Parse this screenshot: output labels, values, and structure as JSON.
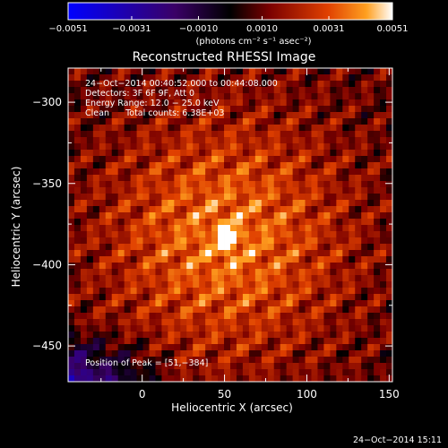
{
  "chart_data": {
    "type": "heatmap",
    "title": "Reconstructed RHESSI Image",
    "xlabel": "Heliocentric X (arcsec)",
    "ylabel": "Heliocentric Y (arcsec)",
    "xlim": [
      -45,
      152
    ],
    "ylim": [
      -472,
      -279
    ],
    "x_ticks": [
      0,
      50,
      100,
      150
    ],
    "y_ticks": [
      -300,
      -350,
      -400,
      -450
    ],
    "colorbar": {
      "min": -0.0051,
      "max": 0.0051,
      "tick_values": [
        -0.0051,
        -0.0031,
        -0.001,
        0.001,
        0.0031,
        0.0051
      ],
      "tick_labels": [
        "−0.0051",
        "−0.0031",
        "−0.0010",
        "0.0010",
        "0.0031",
        "0.0051"
      ],
      "unit_label": "(photons cm⁻² s⁻¹ asec⁻²)",
      "colors": [
        "#0000ff",
        "#3a0066",
        "#000000",
        "#7a0000",
        "#e04000",
        "#ffa020",
        "#ffffff"
      ]
    },
    "peak": {
      "x": 51,
      "y": -384
    },
    "info_lines": [
      "24−Oct−2014 00:40:52.000 to 00:44:08.000",
      "Detectors: 3F 6F 9F, Att 0",
      "Energy Range: 12.0 − 25.0 keV",
      "Clean      Total counts: 6.38E+03"
    ],
    "peak_label": "Position of Peak = [51,−384]",
    "footer_date": "24−Oct−2014 15:11"
  }
}
